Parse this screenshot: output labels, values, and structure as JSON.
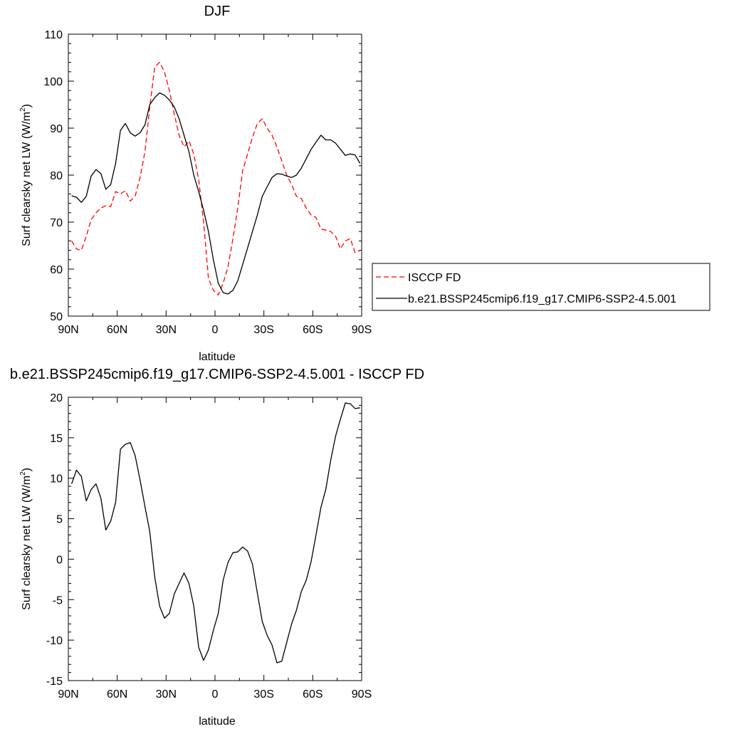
{
  "chart_data": [
    {
      "type": "line",
      "title": "DJF",
      "xlabel": "latitude",
      "ylabel": "Surf clearsky net LW (W/m",
      "ylabel_sup": "2",
      "ylabel_close": ")",
      "xlim": [
        90,
        -90
      ],
      "ylim": [
        50,
        110
      ],
      "xticks": [
        90,
        60,
        30,
        0,
        -30,
        -60,
        -90
      ],
      "xtick_labels": [
        "90N",
        "60N",
        "30N",
        "0",
        "30S",
        "60S",
        "90S"
      ],
      "yticks": [
        50,
        60,
        70,
        80,
        90,
        100,
        110
      ],
      "ytick_labels": [
        "50",
        "60",
        "70",
        "80",
        "90",
        "100",
        "110"
      ],
      "legend_position": "right",
      "series": [
        {
          "name": "ISCCP FD",
          "color": "#ff0000",
          "dash": "dashed",
          "x": [
            88,
            85,
            82,
            79,
            76,
            73,
            70,
            67,
            64,
            61,
            58,
            55,
            52,
            49,
            46,
            43,
            40,
            37,
            34,
            31,
            28,
            25,
            22,
            19,
            16,
            13,
            10,
            7,
            4,
            1,
            -2,
            -5,
            -8,
            -11,
            -14,
            -17,
            -20,
            -23,
            -26,
            -29,
            -32,
            -35,
            -38,
            -41,
            -44,
            -47,
            -50,
            -53,
            -56,
            -59,
            -62,
            -65,
            -68,
            -71,
            -74,
            -77,
            -80,
            -83,
            -86,
            -89
          ],
          "y": [
            66,
            64.3,
            64,
            67,
            70.5,
            72,
            73,
            73.5,
            73.3,
            76.5,
            76,
            76.7,
            74.5,
            75.5,
            79.5,
            85,
            94.5,
            103,
            104,
            102,
            98,
            93,
            88.5,
            86,
            87.3,
            84.5,
            79,
            70,
            58,
            55.5,
            54.5,
            57,
            60.5,
            66.5,
            73,
            81,
            84.5,
            88,
            91,
            92,
            90,
            88.5,
            86,
            83,
            80,
            78,
            75.5,
            75,
            73,
            71.5,
            71,
            68.5,
            68.3,
            68,
            67,
            64.3,
            66,
            66.5,
            63.5,
            64
          ]
        },
        {
          "name": "b.e21.BSSP245cmip6.f19_g17.CMIP6-SSP2-4.5.001",
          "color": "#000000",
          "dash": "solid",
          "x": [
            88,
            85,
            82,
            79,
            76,
            73,
            70,
            67,
            64,
            61,
            58,
            55,
            52,
            49,
            46,
            43,
            40,
            37,
            34,
            31,
            28,
            25,
            22,
            19,
            16,
            13,
            10,
            7,
            4,
            1,
            -2,
            -5,
            -8,
            -11,
            -14,
            -17,
            -20,
            -23,
            -26,
            -29,
            -32,
            -35,
            -38,
            -41,
            -44,
            -47,
            -50,
            -53,
            -56,
            -59,
            -62,
            -65,
            -68,
            -71,
            -74,
            -77,
            -80,
            -83,
            -86,
            -89
          ],
          "y": [
            75.6,
            75.3,
            74.2,
            75.5,
            79.8,
            81.2,
            80.3,
            77,
            78,
            82.5,
            89.5,
            91,
            89,
            88.3,
            89,
            90.7,
            95,
            96.5,
            97.5,
            97,
            96,
            94.5,
            92,
            88.5,
            85,
            80,
            76.5,
            72.5,
            68,
            62,
            57,
            55,
            54.7,
            55.5,
            57.5,
            61,
            64.5,
            68,
            71.5,
            75.5,
            77.5,
            79.5,
            80.3,
            80.2,
            79.8,
            79.5,
            80,
            81.5,
            83.5,
            85.5,
            87,
            88.5,
            87.5,
            87.5,
            86.8,
            85.5,
            84.2,
            84.5,
            84.3,
            82.5
          ]
        }
      ]
    },
    {
      "type": "line",
      "title": "b.e21.BSSP245cmip6.f19_g17.CMIP6-SSP2-4.5.001 - ISCCP FD",
      "xlabel": "latitude",
      "ylabel": "Surf clearsky net LW (W/m",
      "ylabel_sup": "2",
      "ylabel_close": ")",
      "xlim": [
        90,
        -90
      ],
      "ylim": [
        -15,
        20
      ],
      "xticks": [
        90,
        60,
        30,
        0,
        -30,
        -60,
        -90
      ],
      "xtick_labels": [
        "90N",
        "60N",
        "30N",
        "0",
        "30S",
        "60S",
        "90S"
      ],
      "yticks": [
        -15,
        -10,
        -5,
        0,
        5,
        10,
        15,
        20
      ],
      "ytick_labels": [
        "-15",
        "-10",
        "-5",
        "0",
        "5",
        "10",
        "15",
        "20"
      ],
      "series": [
        {
          "color": "#000000",
          "dash": "solid",
          "x": [
            88,
            85,
            82,
            79,
            76,
            73,
            70,
            67,
            64,
            61,
            58,
            55,
            52,
            49,
            46,
            43,
            40,
            37,
            34,
            31,
            28,
            25,
            22,
            19,
            16,
            13,
            10,
            7,
            4,
            1,
            -2,
            -5,
            -8,
            -11,
            -14,
            -17,
            -20,
            -23,
            -26,
            -29,
            -32,
            -35,
            -38,
            -41,
            -44,
            -47,
            -50,
            -53,
            -56,
            -59,
            -62,
            -65,
            -68,
            -71,
            -74,
            -77,
            -80,
            -83,
            -86,
            -89
          ],
          "y": [
            9.3,
            11,
            10.2,
            7.2,
            8.6,
            9.3,
            7.5,
            3.6,
            4.7,
            7,
            13.6,
            14.2,
            14.4,
            12.8,
            9.8,
            6.5,
            3.4,
            -2.2,
            -5.8,
            -7.3,
            -6.7,
            -4.3,
            -3,
            -1.7,
            -3,
            -5.8,
            -10.9,
            -12.5,
            -11.2,
            -8.8,
            -6.7,
            -2.6,
            -0.4,
            0.8,
            0.9,
            1.5,
            1,
            -0.6,
            -4.2,
            -7.7,
            -9.4,
            -10.6,
            -12.8,
            -12.6,
            -10.3,
            -8,
            -6.3,
            -4,
            -2.6,
            -0.3,
            3,
            6.4,
            8.6,
            12.2,
            15.2,
            17.3,
            19.3,
            19.2,
            18.6,
            18.7
          ]
        }
      ]
    }
  ]
}
